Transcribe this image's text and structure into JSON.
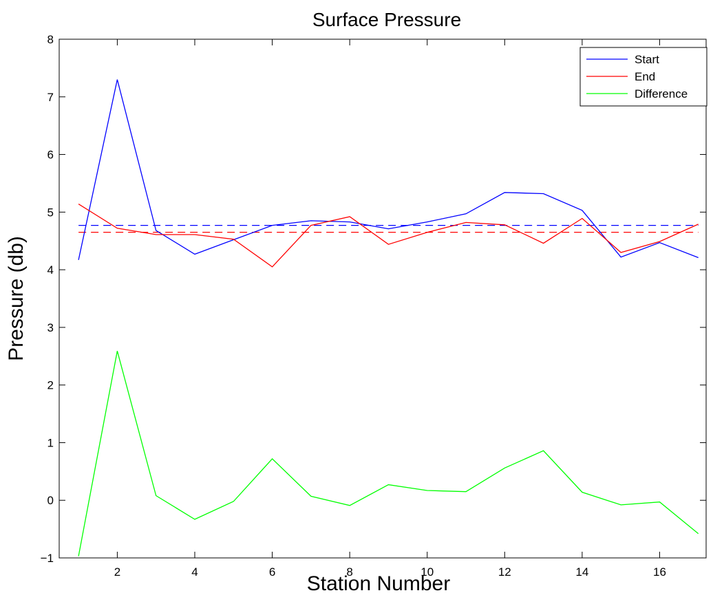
{
  "chart_data": {
    "type": "line",
    "title": "Surface Pressure",
    "xlabel": "Station Number",
    "ylabel": "Pressure (db)",
    "xlim": [
      0.5,
      17.2
    ],
    "ylim": [
      -1,
      8
    ],
    "xticks": [
      2,
      4,
      6,
      8,
      10,
      12,
      14,
      16
    ],
    "yticks": [
      -1,
      0,
      1,
      2,
      3,
      4,
      5,
      6,
      7,
      8
    ],
    "tick_labels_x": [
      "2",
      "4",
      "6",
      "8",
      "10",
      "12",
      "14",
      "16"
    ],
    "tick_labels_y": [
      "−1",
      "0",
      "1",
      "2",
      "3",
      "4",
      "5",
      "6",
      "7",
      "8"
    ],
    "grid": false,
    "legend_position": "top-right",
    "x": [
      1,
      2,
      3,
      4,
      5,
      6,
      7,
      8,
      9,
      10,
      11,
      12,
      13,
      14,
      15,
      16,
      17
    ],
    "series": [
      {
        "name": "Start",
        "color": "#0000ff",
        "style": "solid",
        "values": [
          4.17,
          7.3,
          4.68,
          4.27,
          4.52,
          4.77,
          4.85,
          4.83,
          4.71,
          4.83,
          4.97,
          5.34,
          5.32,
          5.03,
          4.22,
          4.47,
          4.21
        ]
      },
      {
        "name": "End",
        "color": "#ff0000",
        "style": "solid",
        "values": [
          5.14,
          4.72,
          4.61,
          4.61,
          4.53,
          4.05,
          4.77,
          4.92,
          4.44,
          4.65,
          4.82,
          4.78,
          4.46,
          4.89,
          4.3,
          4.49,
          4.79
        ]
      },
      {
        "name": "Difference",
        "color": "#00ff00",
        "style": "solid",
        "values": [
          -0.97,
          2.59,
          0.08,
          -0.33,
          -0.02,
          0.72,
          0.07,
          -0.09,
          0.27,
          0.17,
          0.15,
          0.56,
          0.86,
          0.14,
          -0.08,
          -0.03,
          -0.58
        ]
      }
    ],
    "reference_lines": [
      {
        "color": "#0000ff",
        "style": "dashed",
        "y": 4.77,
        "x_range": [
          1,
          17
        ]
      },
      {
        "color": "#ff0000",
        "style": "dashed",
        "y": 4.65,
        "x_range": [
          1,
          17
        ]
      }
    ]
  }
}
